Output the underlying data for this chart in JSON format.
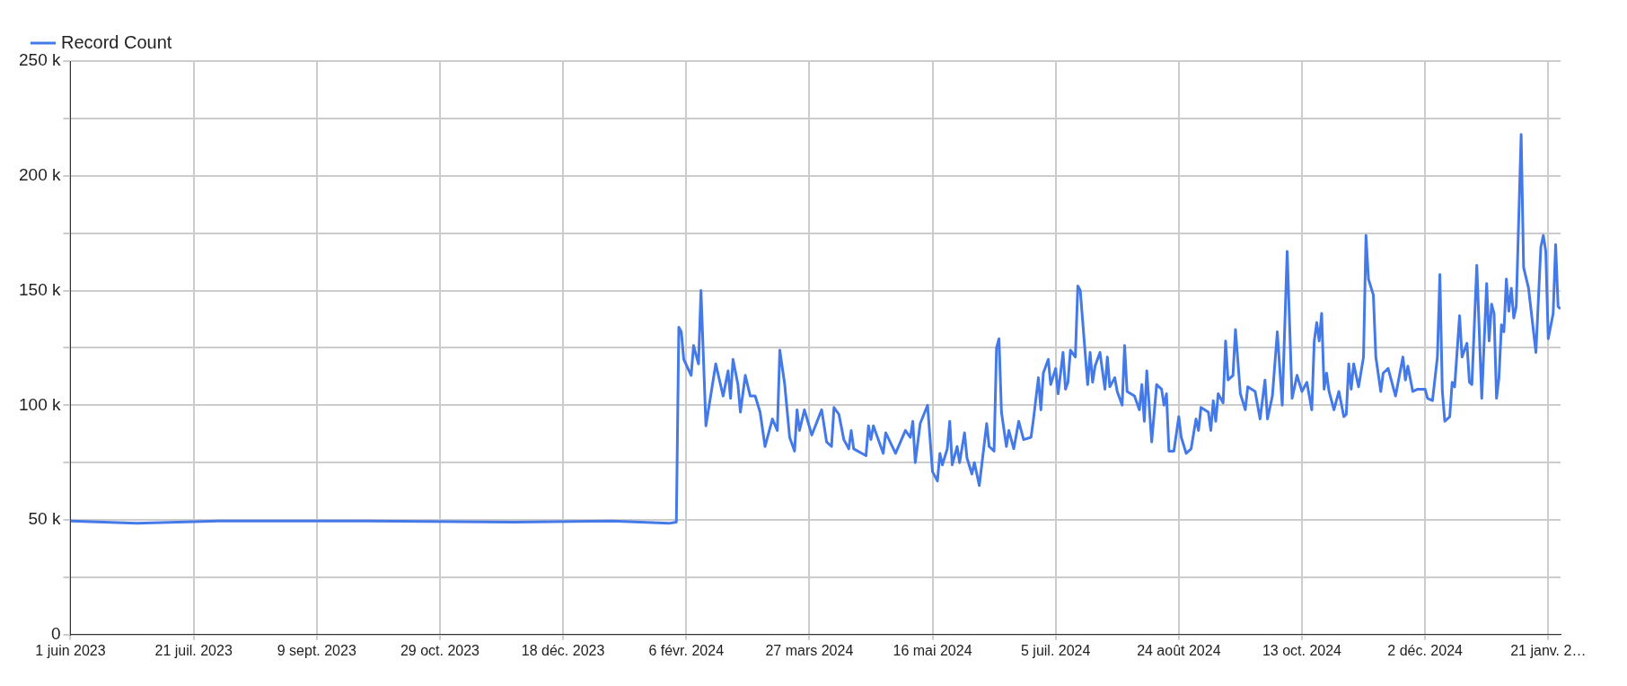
{
  "chart_data": {
    "type": "line",
    "legend": "top left",
    "grid": true,
    "marker": "none",
    "line_style": "solid",
    "xlim": [
      "2023-06-01",
      "2025-01-26"
    ],
    "xticks": [
      {
        "value": "2023-06-01",
        "label": "1 juin 2023"
      },
      {
        "value": "2023-07-21",
        "label": "21 juil. 2023"
      },
      {
        "value": "2023-09-09",
        "label": "9 sept. 2023"
      },
      {
        "value": "2023-10-29",
        "label": "29 oct. 2023"
      },
      {
        "value": "2023-12-18",
        "label": "18 déc. 2023"
      },
      {
        "value": "2024-02-06",
        "label": "6 févr. 2024"
      },
      {
        "value": "2024-03-27",
        "label": "27 mars 2024"
      },
      {
        "value": "2024-05-16",
        "label": "16 mai 2024"
      },
      {
        "value": "2024-07-05",
        "label": "5 juil. 2024"
      },
      {
        "value": "2024-08-24",
        "label": "24 août 2024"
      },
      {
        "value": "2024-10-13",
        "label": "13 oct. 2024"
      },
      {
        "value": "2024-12-02",
        "label": "2 déc. 2024"
      },
      {
        "value": "2025-01-21",
        "label": "21 janv. 2…"
      }
    ],
    "ylim": [
      0,
      250000
    ],
    "yticks": [
      {
        "value": 0,
        "label": "0"
      },
      {
        "value": 25000,
        "label": null
      },
      {
        "value": 50000,
        "label": "50 k"
      },
      {
        "value": 75000,
        "label": null
      },
      {
        "value": 100000,
        "label": "100 k"
      },
      {
        "value": 125000,
        "label": null
      },
      {
        "value": 150000,
        "label": "150 k"
      },
      {
        "value": 175000,
        "label": null
      },
      {
        "value": 200000,
        "label": "200 k"
      },
      {
        "value": 225000,
        "label": null
      },
      {
        "value": 250000,
        "label": "250 k"
      }
    ],
    "series": [
      {
        "name": "Record Count",
        "color": "#4479e9",
        "x": [
          "2023-06-01",
          "2023-06-28",
          "2023-07-31",
          "2023-09-29",
          "2023-11-28",
          "2024-01-07",
          "2024-01-30",
          "2024-02-02",
          "2024-02-03",
          "2024-02-04",
          "2024-02-05",
          "2024-02-08",
          "2024-02-09",
          "2024-02-11",
          "2024-02-12",
          "2024-02-14",
          "2024-02-18",
          "2024-02-21",
          "2024-02-23",
          "2024-02-24",
          "2024-02-25",
          "2024-02-27",
          "2024-02-28",
          "2024-03-01",
          "2024-03-03",
          "2024-03-05",
          "2024-03-07",
          "2024-03-09",
          "2024-03-12",
          "2024-03-14",
          "2024-03-15",
          "2024-03-17",
          "2024-03-19",
          "2024-03-21",
          "2024-03-22",
          "2024-03-23",
          "2024-03-25",
          "2024-03-28",
          "2024-04-01",
          "2024-04-03",
          "2024-04-05",
          "2024-04-06",
          "2024-04-08",
          "2024-04-10",
          "2024-04-12",
          "2024-04-13",
          "2024-04-14",
          "2024-04-19",
          "2024-04-20",
          "2024-04-21",
          "2024-04-22",
          "2024-04-26",
          "2024-04-27",
          "2024-05-01",
          "2024-05-05",
          "2024-05-07",
          "2024-05-08",
          "2024-05-09",
          "2024-05-11",
          "2024-05-14",
          "2024-05-16",
          "2024-05-18",
          "2024-05-19",
          "2024-05-20",
          "2024-05-22",
          "2024-05-23",
          "2024-05-24",
          "2024-05-26",
          "2024-05-27",
          "2024-05-29",
          "2024-05-30",
          "2024-06-01",
          "2024-06-02",
          "2024-06-04",
          "2024-06-05",
          "2024-06-07",
          "2024-06-08",
          "2024-06-10",
          "2024-06-11",
          "2024-06-12",
          "2024-06-13",
          "2024-06-15",
          "2024-06-16",
          "2024-06-18",
          "2024-06-20",
          "2024-06-22",
          "2024-06-25",
          "2024-06-26",
          "2024-06-28",
          "2024-06-29",
          "2024-06-30",
          "2024-07-02",
          "2024-07-03",
          "2024-07-05",
          "2024-07-06",
          "2024-07-08",
          "2024-07-09",
          "2024-07-10",
          "2024-07-11",
          "2024-07-13",
          "2024-07-14",
          "2024-07-15",
          "2024-07-18",
          "2024-07-19",
          "2024-07-20",
          "2024-07-21",
          "2024-07-23",
          "2024-07-25",
          "2024-07-26",
          "2024-07-27",
          "2024-07-29",
          "2024-07-30",
          "2024-08-01",
          "2024-08-02",
          "2024-08-03",
          "2024-08-06",
          "2024-08-08",
          "2024-08-09",
          "2024-08-10",
          "2024-08-11",
          "2024-08-13",
          "2024-08-15",
          "2024-08-17",
          "2024-08-18",
          "2024-08-19",
          "2024-08-20",
          "2024-08-22",
          "2024-08-24",
          "2024-08-25",
          "2024-08-27",
          "2024-08-29",
          "2024-08-31",
          "2024-09-01",
          "2024-09-02",
          "2024-09-05",
          "2024-09-06",
          "2024-09-07",
          "2024-09-08",
          "2024-09-09",
          "2024-09-11",
          "2024-09-12",
          "2024-09-13",
          "2024-09-15",
          "2024-09-16",
          "2024-09-18",
          "2024-09-20",
          "2024-09-21",
          "2024-09-24",
          "2024-09-26",
          "2024-09-28",
          "2024-09-29",
          "2024-10-01",
          "2024-10-03",
          "2024-10-05",
          "2024-10-07",
          "2024-10-09",
          "2024-10-11",
          "2024-10-13",
          "2024-10-15",
          "2024-10-17",
          "2024-10-18",
          "2024-10-19",
          "2024-10-20",
          "2024-10-21",
          "2024-10-22",
          "2024-10-23",
          "2024-10-24",
          "2024-10-26",
          "2024-10-28",
          "2024-10-30",
          "2024-10-31",
          "2024-11-01",
          "2024-11-02",
          "2024-11-03",
          "2024-11-05",
          "2024-11-07",
          "2024-11-08",
          "2024-11-09",
          "2024-11-11",
          "2024-11-12",
          "2024-11-14",
          "2024-11-15",
          "2024-11-17",
          "2024-11-20",
          "2024-11-23",
          "2024-11-24",
          "2024-11-25",
          "2024-11-27",
          "2024-11-29",
          "2024-12-02",
          "2024-12-03",
          "2024-12-05",
          "2024-12-07",
          "2024-12-08",
          "2024-12-09",
          "2024-12-10",
          "2024-12-12",
          "2024-12-13",
          "2024-12-14",
          "2024-12-16",
          "2024-12-17",
          "2024-12-19",
          "2024-12-20",
          "2024-12-21",
          "2024-12-23",
          "2024-12-25",
          "2024-12-27",
          "2024-12-28",
          "2024-12-29",
          "2024-12-30",
          "2024-12-31",
          "2025-01-01",
          "2025-01-02",
          "2025-01-03",
          "2025-01-04",
          "2025-01-05",
          "2025-01-06",
          "2025-01-07",
          "2025-01-08",
          "2025-01-10",
          "2025-01-11",
          "2025-01-13",
          "2025-01-16",
          "2025-01-18",
          "2025-01-19",
          "2025-01-20",
          "2025-01-21",
          "2025-01-23",
          "2025-01-24",
          "2025-01-25",
          "2025-01-26"
        ],
        "values": [
          49500,
          48500,
          49500,
          49500,
          49000,
          49500,
          48500,
          49000,
          134000,
          132000,
          120000,
          113000,
          126000,
          118000,
          150000,
          91000,
          118000,
          104000,
          115000,
          103000,
          120000,
          109000,
          97000,
          113000,
          104000,
          104000,
          97000,
          82000,
          94000,
          89000,
          124000,
          109000,
          86000,
          80000,
          98000,
          89000,
          98000,
          87000,
          98000,
          84000,
          82000,
          99000,
          96000,
          85000,
          81000,
          89000,
          81000,
          78000,
          91000,
          85000,
          91000,
          79000,
          88000,
          79000,
          89000,
          86000,
          93000,
          75000,
          92000,
          100000,
          71000,
          67000,
          79000,
          74000,
          81000,
          93000,
          74000,
          82000,
          75000,
          88000,
          77000,
          70000,
          75000,
          65000,
          74000,
          92000,
          82000,
          80000,
          125000,
          129000,
          97000,
          82000,
          89000,
          81000,
          93000,
          85000,
          86000,
          94000,
          112000,
          98000,
          114000,
          120000,
          109000,
          116000,
          105000,
          123000,
          107000,
          110000,
          124000,
          121000,
          152000,
          150000,
          109000,
          123000,
          110000,
          117000,
          123000,
          107000,
          121000,
          108000,
          112000,
          106000,
          100000,
          126000,
          106000,
          104000,
          98000,
          109000,
          93000,
          115000,
          84000,
          109000,
          107000,
          100000,
          105000,
          80000,
          80000,
          95000,
          86000,
          79000,
          81000,
          94000,
          89000,
          99000,
          97000,
          89000,
          102000,
          93000,
          105000,
          101000,
          128000,
          111000,
          113000,
          133000,
          105000,
          98000,
          108000,
          106000,
          94000,
          111000,
          94000,
          104000,
          132000,
          100000,
          167000,
          103000,
          113000,
          106000,
          110000,
          98000,
          128000,
          136000,
          128000,
          140000,
          107000,
          114000,
          106000,
          98000,
          106000,
          95000,
          96000,
          118000,
          107000,
          118000,
          108000,
          121000,
          174000,
          155000,
          148000,
          121000,
          106000,
          114000,
          116000,
          104000,
          121000,
          111000,
          117000,
          106000,
          107000,
          107000,
          103000,
          102000,
          121000,
          157000,
          106000,
          93000,
          95000,
          110000,
          108000,
          139000,
          121000,
          127000,
          110000,
          109000,
          161000,
          103000,
          153000,
          128000,
          144000,
          140000,
          103000,
          112000,
          135000,
          132000,
          155000,
          141000,
          151000,
          138000,
          143000,
          218000,
          160000,
          151000,
          123000,
          169000,
          174000,
          167000,
          129000,
          140000,
          170000,
          143000,
          142000
        ]
      }
    ]
  }
}
